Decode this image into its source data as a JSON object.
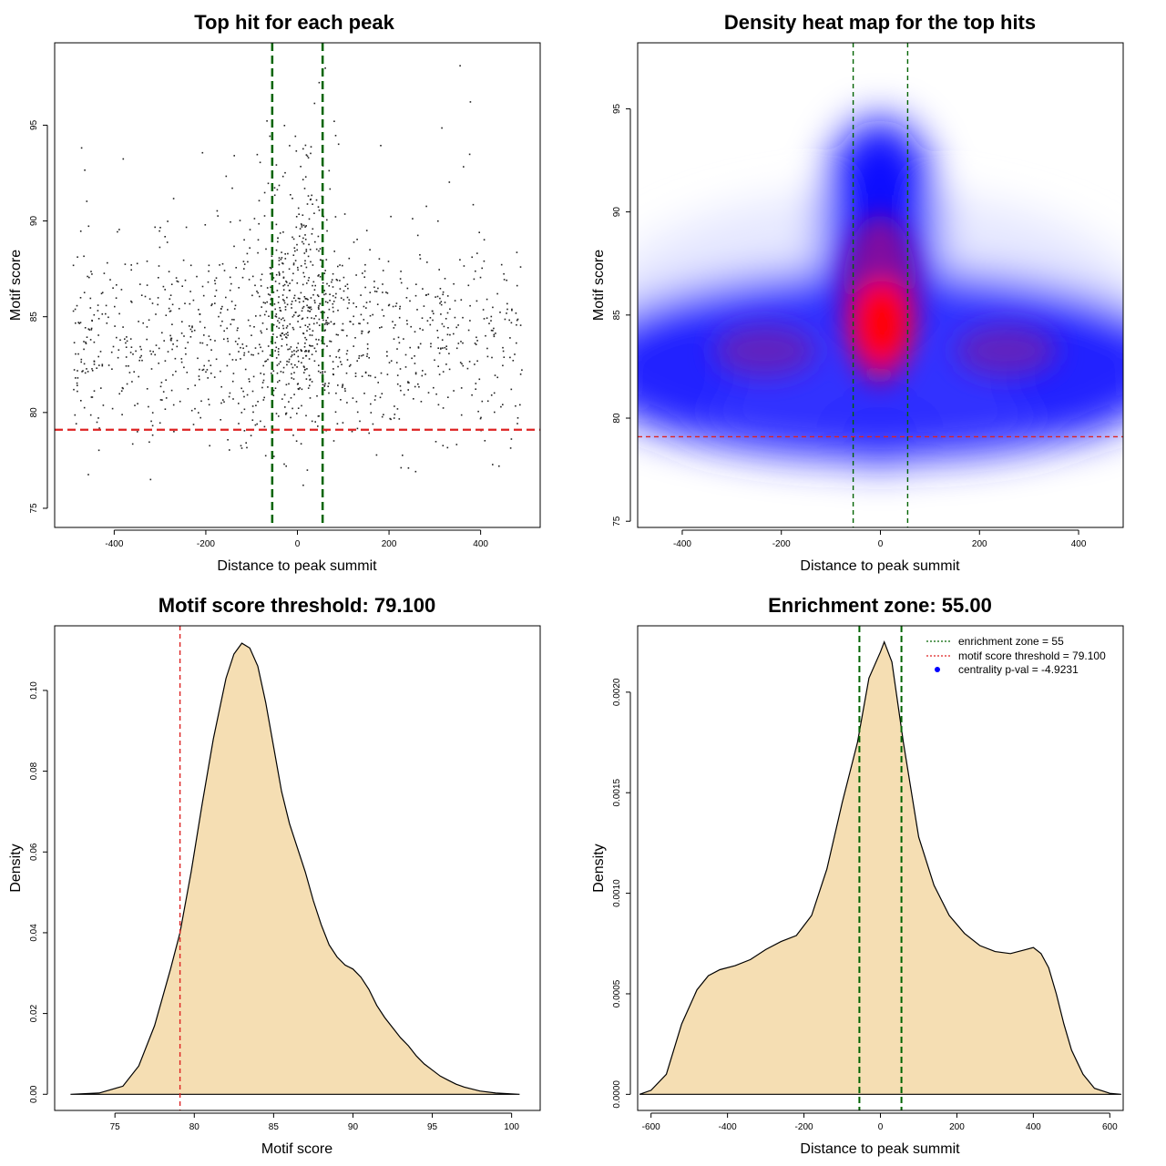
{
  "colors": {
    "threshold_line": "#dd2222",
    "zone_line": "#006400",
    "density_fill": "#f5deb3",
    "scatter_point": "#222222",
    "legend_dot": "#0000ff",
    "heat_low": "#ffffff",
    "heat_mid": "#0000ff",
    "heat_high": "#ff0000"
  },
  "chart_data": [
    {
      "id": "scatter",
      "type": "scatter",
      "title": "Top hit for each peak",
      "xlabel": "Distance to peak summit",
      "ylabel": "Motif score",
      "xlim": [
        -530,
        530
      ],
      "ylim": [
        74,
        99.3
      ],
      "xticks": [
        -400,
        -200,
        0,
        200,
        400
      ],
      "yticks": [
        75,
        80,
        85,
        90,
        95
      ],
      "vlines": [
        -55,
        55
      ],
      "hline": 79.1,
      "n_points": 1400,
      "points_note": "approx. 1400 dots; x spread uniform in [-490, 490], score concentrated near 82-86 with a tall central ridge around distance 0 reaching ~98"
    },
    {
      "id": "heatmap",
      "type": "heatmap",
      "title": "Density heat map for the top hits",
      "xlabel": "Distance to peak summit",
      "ylabel": "Motif score",
      "xlim": [
        -490,
        490
      ],
      "ylim": [
        74.7,
        98.2
      ],
      "xticks": [
        -400,
        -200,
        0,
        200,
        400
      ],
      "yticks": [
        75,
        80,
        85,
        90,
        95
      ],
      "vlines": [
        -55,
        55
      ],
      "hline": 79.1,
      "peak": {
        "x": 10,
        "y": 84.5
      },
      "color_scale": [
        "white",
        "blue",
        "red"
      ]
    },
    {
      "id": "score_density",
      "type": "area",
      "title": "Motif score threshold: 79.100",
      "xlabel": "Motif score",
      "ylabel": "Density",
      "xlim": [
        71.2,
        101.8
      ],
      "ylim": [
        -0.004,
        0.116
      ],
      "xticks": [
        75,
        80,
        85,
        90,
        95,
        100
      ],
      "yticks": [
        0.0,
        0.02,
        0.04,
        0.06,
        0.08,
        0.1
      ],
      "ytick_labels": [
        "0.00",
        "0.02",
        "0.04",
        "0.06",
        "0.08",
        "0.10"
      ],
      "vline": 79.1,
      "x": [
        72.2,
        74,
        75.5,
        76.5,
        77.5,
        78.5,
        79.1,
        79.8,
        80.5,
        81.2,
        82,
        82.5,
        83,
        83.5,
        84,
        84.5,
        85,
        85.5,
        86,
        86.5,
        87,
        87.5,
        88,
        88.5,
        89,
        89.5,
        90,
        90.5,
        91,
        91.5,
        92,
        92.5,
        93,
        93.5,
        94,
        94.5,
        95,
        95.5,
        96,
        96.5,
        97,
        98,
        99,
        100,
        100.5
      ],
      "y": [
        0.0,
        0.0003,
        0.002,
        0.007,
        0.017,
        0.031,
        0.04,
        0.055,
        0.072,
        0.088,
        0.103,
        0.109,
        0.1117,
        0.1105,
        0.106,
        0.097,
        0.086,
        0.075,
        0.067,
        0.061,
        0.055,
        0.048,
        0.042,
        0.037,
        0.034,
        0.032,
        0.031,
        0.029,
        0.026,
        0.022,
        0.019,
        0.0165,
        0.014,
        0.012,
        0.0095,
        0.0075,
        0.006,
        0.0045,
        0.0035,
        0.0025,
        0.0018,
        0.0008,
        0.0003,
        0.0001,
        0.0
      ]
    },
    {
      "id": "distance_density",
      "type": "area",
      "title": "Enrichment zone: 55.00",
      "xlabel": "Distance to peak summit",
      "ylabel": "Density",
      "xlim": [
        -635,
        635
      ],
      "ylim": [
        -8e-05,
        0.00233
      ],
      "xticks": [
        -600,
        -400,
        -200,
        0,
        200,
        400,
        600
      ],
      "yticks": [
        0.0,
        0.0005,
        0.001,
        0.0015,
        0.002
      ],
      "ytick_labels": [
        "0.0000",
        "0.0005",
        "0.0010",
        "0.0015",
        "0.0020"
      ],
      "vlines": [
        -55,
        55
      ],
      "x": [
        -630,
        -600,
        -560,
        -520,
        -480,
        -450,
        -420,
        -380,
        -340,
        -300,
        -260,
        -220,
        -180,
        -140,
        -100,
        -60,
        -30,
        0,
        10,
        30,
        60,
        100,
        140,
        180,
        220,
        260,
        300,
        340,
        380,
        400,
        420,
        440,
        460,
        480,
        500,
        530,
        560,
        600,
        630
      ],
      "y": [
        0.0,
        2e-05,
        0.0001,
        0.00035,
        0.00052,
        0.00059,
        0.00062,
        0.00064,
        0.00067,
        0.00072,
        0.00076,
        0.00079,
        0.00089,
        0.00112,
        0.00145,
        0.00175,
        0.00207,
        0.0022,
        0.00225,
        0.00215,
        0.00175,
        0.00128,
        0.00104,
        0.00089,
        0.0008,
        0.00074,
        0.00071,
        0.0007,
        0.00072,
        0.00073,
        0.0007,
        0.00063,
        0.0005,
        0.00035,
        0.00022,
        0.0001,
        3e-05,
        5e-06,
        0.0
      ],
      "legend": [
        {
          "label": "enrichment zone = 55",
          "style": "dotted-line",
          "color": "#006400"
        },
        {
          "label": "motif score threshold = 79.100",
          "style": "dotted-line",
          "color": "#dd2222"
        },
        {
          "label": "centrality p-val = -4.9231",
          "style": "dot",
          "color": "#0000ff"
        }
      ]
    }
  ]
}
